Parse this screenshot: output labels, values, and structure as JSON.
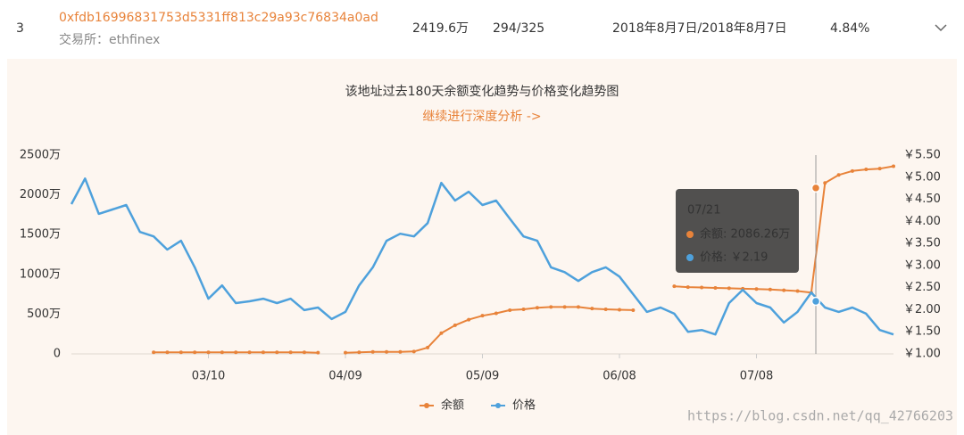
{
  "row": {
    "rank": "3",
    "address": "0xfdb16996831753d5331ff813c29a93c76834a0ad",
    "exchange": "交易所：ethfinex",
    "balance": "2419.6万",
    "count": "294/325",
    "dates": "2018年8月7日/2018年8月7日",
    "ratio": "4.84%"
  },
  "chart_data": {
    "type": "line",
    "title": "该地址过去180天余额变化趋势与价格变化趋势图",
    "subtitle": "继续进行深度分析 ->",
    "categories": [
      null,
      null,
      null,
      null,
      null,
      null,
      null,
      null,
      null,
      null,
      "03/10",
      null,
      null,
      null,
      null,
      null,
      null,
      null,
      null,
      null,
      "04/09",
      null,
      null,
      null,
      null,
      null,
      null,
      null,
      null,
      null,
      "05/09",
      null,
      null,
      null,
      null,
      null,
      null,
      null,
      null,
      null,
      "06/08",
      null,
      null,
      null,
      null,
      null,
      null,
      null,
      null,
      null,
      "07/08",
      null,
      null,
      null,
      null,
      null,
      null,
      null,
      null,
      null,
      null
    ],
    "series": [
      {
        "name": "余额",
        "color": "#e8833a",
        "values": [
          null,
          null,
          null,
          null,
          null,
          null,
          20,
          20,
          20,
          20,
          20,
          20,
          20,
          20,
          20,
          20,
          20,
          20,
          15,
          null,
          15,
          20,
          25,
          25,
          25,
          30,
          80,
          260,
          360,
          430,
          480,
          510,
          550,
          560,
          580,
          590,
          590,
          590,
          570,
          560,
          555,
          550,
          null,
          null,
          850,
          840,
          835,
          830,
          825,
          820,
          815,
          810,
          800,
          790,
          770,
          2150,
          2250,
          2300,
          2320,
          2330,
          2360
        ]
      },
      {
        "name": "价格",
        "color": "#4ea1dc",
        "axis": "y2",
        "values": [
          4.39,
          4.97,
          4.17,
          4.27,
          4.37,
          3.76,
          3.66,
          3.36,
          3.56,
          2.96,
          2.25,
          2.55,
          2.15,
          2.19,
          2.25,
          2.15,
          2.25,
          1.99,
          2.05,
          1.79,
          1.95,
          2.55,
          2.96,
          3.56,
          3.72,
          3.66,
          3.96,
          4.87,
          4.47,
          4.67,
          4.37,
          4.47,
          4.06,
          3.66,
          3.56,
          2.96,
          2.85,
          2.65,
          2.85,
          2.96,
          2.75,
          2.35,
          1.95,
          2.05,
          1.91,
          1.5,
          1.54,
          1.44,
          2.15,
          2.45,
          2.15,
          2.05,
          1.71,
          1.95,
          2.39,
          2.05,
          1.95,
          2.05,
          1.91,
          1.54,
          1.44
        ]
      }
    ],
    "ylim": [
      0,
      2500
    ],
    "yticks": [
      0,
      {
        "value": 500,
        "label": "500万"
      },
      {
        "value": 1000,
        "label": "1000万"
      },
      {
        "value": 1500,
        "label": "1500万"
      },
      {
        "value": 2000,
        "label": "2000万"
      },
      {
        "value": 2500,
        "label": "2500万"
      }
    ],
    "y2lim": [
      1,
      5.5
    ],
    "y2ticks": [
      {
        "value": 1,
        "label": "￥1.00"
      },
      {
        "value": 1.5,
        "label": "￥1.50"
      },
      {
        "value": 2,
        "label": "￥2.00"
      },
      {
        "value": 2.5,
        "label": "￥2.50"
      },
      {
        "value": 3,
        "label": "￥3.00"
      },
      {
        "value": 3.5,
        "label": "￥3.50"
      },
      {
        "value": 4,
        "label": "￥4.00"
      },
      {
        "value": 4.5,
        "label": "￥4.50"
      },
      {
        "value": 5,
        "label": "￥5.00"
      },
      {
        "value": 5.5,
        "label": "￥5.50"
      }
    ],
    "tooltip": {
      "title": "07/21",
      "items": [
        {
          "value": 2086.26,
          "label": "余额: 2086.26万"
        },
        {
          "value": 2.19,
          "label": "价格: ￥2.19"
        }
      ]
    },
    "legend": "bottom"
  },
  "watermark": "https://blog.csdn.net/qq_42766203"
}
